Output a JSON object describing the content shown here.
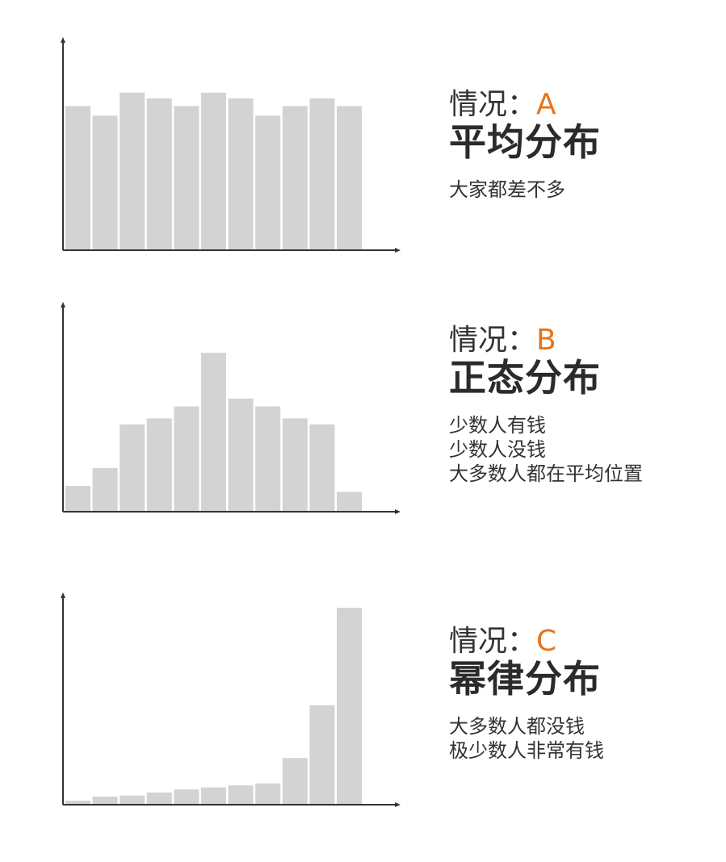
{
  "chart_data": [
    {
      "type": "bar",
      "case_prefix": "情况：",
      "case_letter": "A",
      "title": "平均分布",
      "description": [
        "大家都差不多"
      ],
      "values": [
        7.5,
        7.0,
        8.2,
        7.9,
        7.5,
        8.2,
        7.9,
        7.0,
        7.5,
        7.9,
        7.5
      ],
      "ylim": [
        0,
        10.5
      ]
    },
    {
      "type": "bar",
      "case_prefix": "情况：",
      "case_letter": "B",
      "title": "正态分布",
      "description": [
        "少数人有钱",
        "少数人没钱",
        "大多数人都在平均位置"
      ],
      "values": [
        1.3,
        2.2,
        4.4,
        4.7,
        5.3,
        8.0,
        5.7,
        5.3,
        4.7,
        4.4,
        1.0
      ],
      "ylim": [
        0,
        10
      ]
    },
    {
      "type": "bar",
      "case_prefix": "情况：",
      "case_letter": "C",
      "title": "幂律分布",
      "description": [
        "大多数人都没钱",
        "极少数人非常有钱"
      ],
      "values": [
        0.2,
        0.4,
        0.45,
        0.6,
        0.75,
        0.85,
        0.95,
        1.05,
        2.3,
        4.9,
        9.7
      ],
      "ylim": [
        0,
        9.9
      ]
    }
  ],
  "colors": {
    "bar": "#d3d3d3",
    "axis": "#333333",
    "accent": "#e8731b",
    "text": "#333333"
  }
}
